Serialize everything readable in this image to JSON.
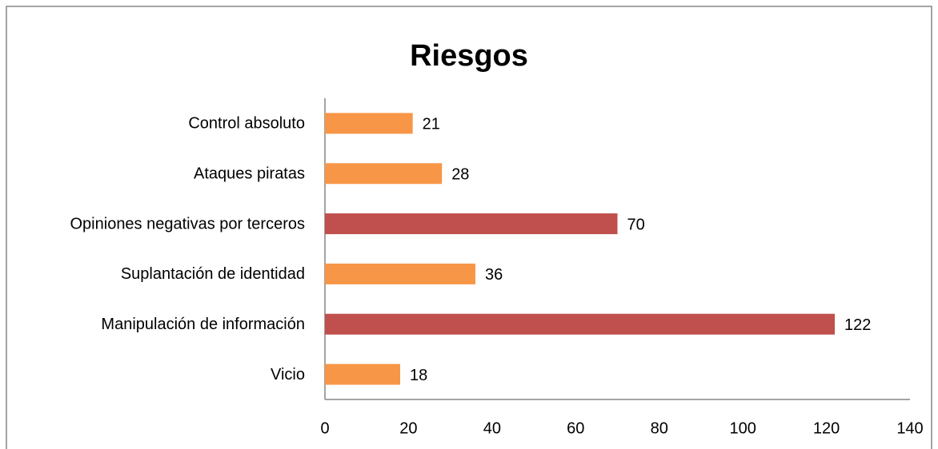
{
  "chart_data": {
    "type": "bar",
    "orientation": "horizontal",
    "title": "Riesgos",
    "categories": [
      "Control absoluto",
      "Ataques piratas",
      "Opiniones negativas por terceros",
      "Suplantación de identidad",
      "Manipulación de información",
      "Vicio"
    ],
    "values": [
      21,
      28,
      70,
      36,
      122,
      18
    ],
    "colors": [
      "#f79646",
      "#f79646",
      "#c0504d",
      "#f79646",
      "#c0504d",
      "#f79646"
    ],
    "xlim": [
      0,
      140
    ],
    "xticks": [
      0,
      20,
      40,
      60,
      80,
      100,
      120,
      140
    ],
    "grid": false
  }
}
